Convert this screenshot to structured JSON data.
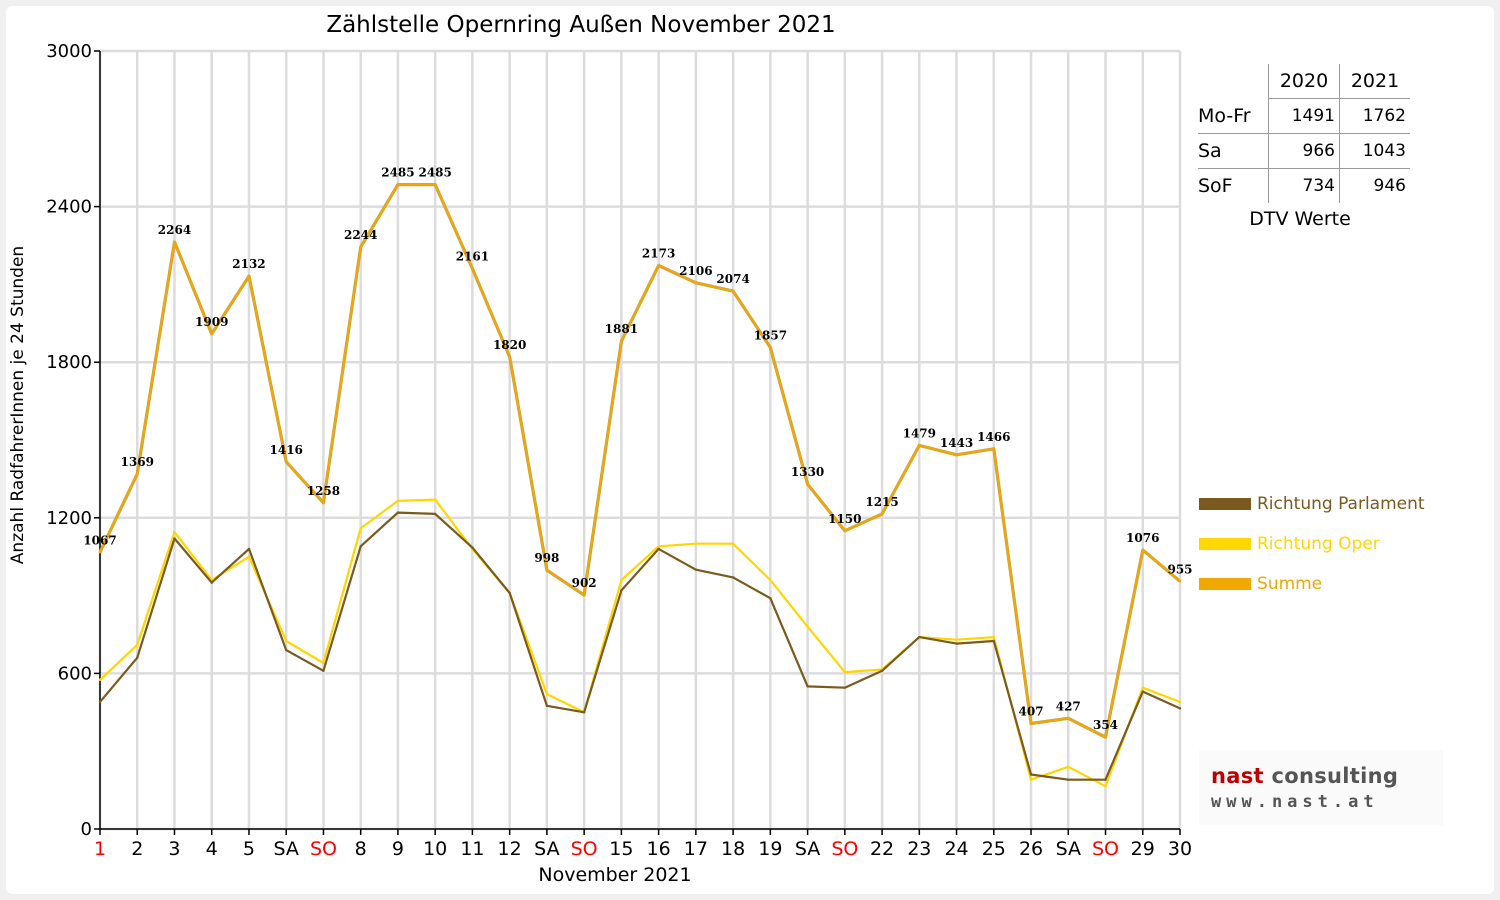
{
  "chart_data": {
    "type": "line",
    "title": "Zählstelle Opernring Außen November 2021",
    "xlabel": "November 2021",
    "ylabel": "Anzahl RadfahrerInnen je 24 Stunden",
    "ylim": [
      0,
      3000
    ],
    "yticks": [
      "0",
      "600",
      "1200",
      "1800",
      "2400",
      "3000"
    ],
    "grid": true,
    "legend_position": "right",
    "categories": [
      "1",
      "2",
      "3",
      "4",
      "5",
      "SA",
      "SO",
      "8",
      "9",
      "10",
      "11",
      "12",
      "SA",
      "SO",
      "15",
      "16",
      "17",
      "18",
      "19",
      "SA",
      "SO",
      "22",
      "23",
      "24",
      "25",
      "26",
      "SA",
      "SO",
      "29",
      "30"
    ],
    "holiday_tick_color": "#ff0000",
    "holiday_ticks": [
      "1",
      "SO"
    ],
    "series": [
      {
        "name": "Richtung Parlament",
        "color": "#7a5a1e",
        "values": [
          490,
          660,
          1120,
          950,
          1080,
          690,
          610,
          1090,
          1220,
          1215,
          1085,
          910,
          475,
          450,
          920,
          1080,
          1000,
          970,
          890,
          550,
          545,
          610,
          740,
          715,
          725,
          210,
          190,
          190,
          530,
          465
        ]
      },
      {
        "name": "Richtung Oper",
        "color": "#ffd700",
        "values": [
          575,
          710,
          1145,
          960,
          1050,
          725,
          640,
          1160,
          1265,
          1270,
          1080,
          910,
          520,
          450,
          960,
          1090,
          1100,
          1100,
          960,
          780,
          605,
          615,
          740,
          730,
          740,
          190,
          240,
          165,
          545,
          490
        ]
      },
      {
        "name": "Summe",
        "color": "#f0a800",
        "values": [
          1067,
          1369,
          2264,
          1909,
          2132,
          1416,
          1258,
          2244,
          2485,
          2485,
          2161,
          1820,
          998,
          902,
          1881,
          2173,
          2106,
          2074,
          1857,
          1330,
          1150,
          1215,
          1479,
          1443,
          1466,
          407,
          427,
          354,
          1076,
          955
        ]
      }
    ],
    "data_labels": [
      "1067",
      "1369",
      "2264",
      "1909",
      "2132",
      "1416",
      "1258",
      "2244",
      "2485",
      "2485",
      "2161",
      "1820",
      "998",
      "902",
      "1881",
      "2173",
      "2106",
      "2074",
      "1857",
      "1330",
      "1150",
      "1215",
      "1479",
      "1443",
      "1466",
      "407",
      "427",
      "354",
      "1076",
      "955"
    ]
  },
  "dtv_table": {
    "columns": [
      "2020",
      "2021"
    ],
    "rows": [
      {
        "label": "Mo-Fr",
        "v2020": "1491",
        "v2021": "1762"
      },
      {
        "label": "Sa",
        "v2020": "966",
        "v2021": "1043"
      },
      {
        "label": "SoF",
        "v2020": "734",
        "v2021": "946"
      }
    ],
    "caption": "DTV Werte"
  },
  "logo": {
    "word1": "nast",
    "word2": "consulting",
    "url": "www.nast.at"
  }
}
